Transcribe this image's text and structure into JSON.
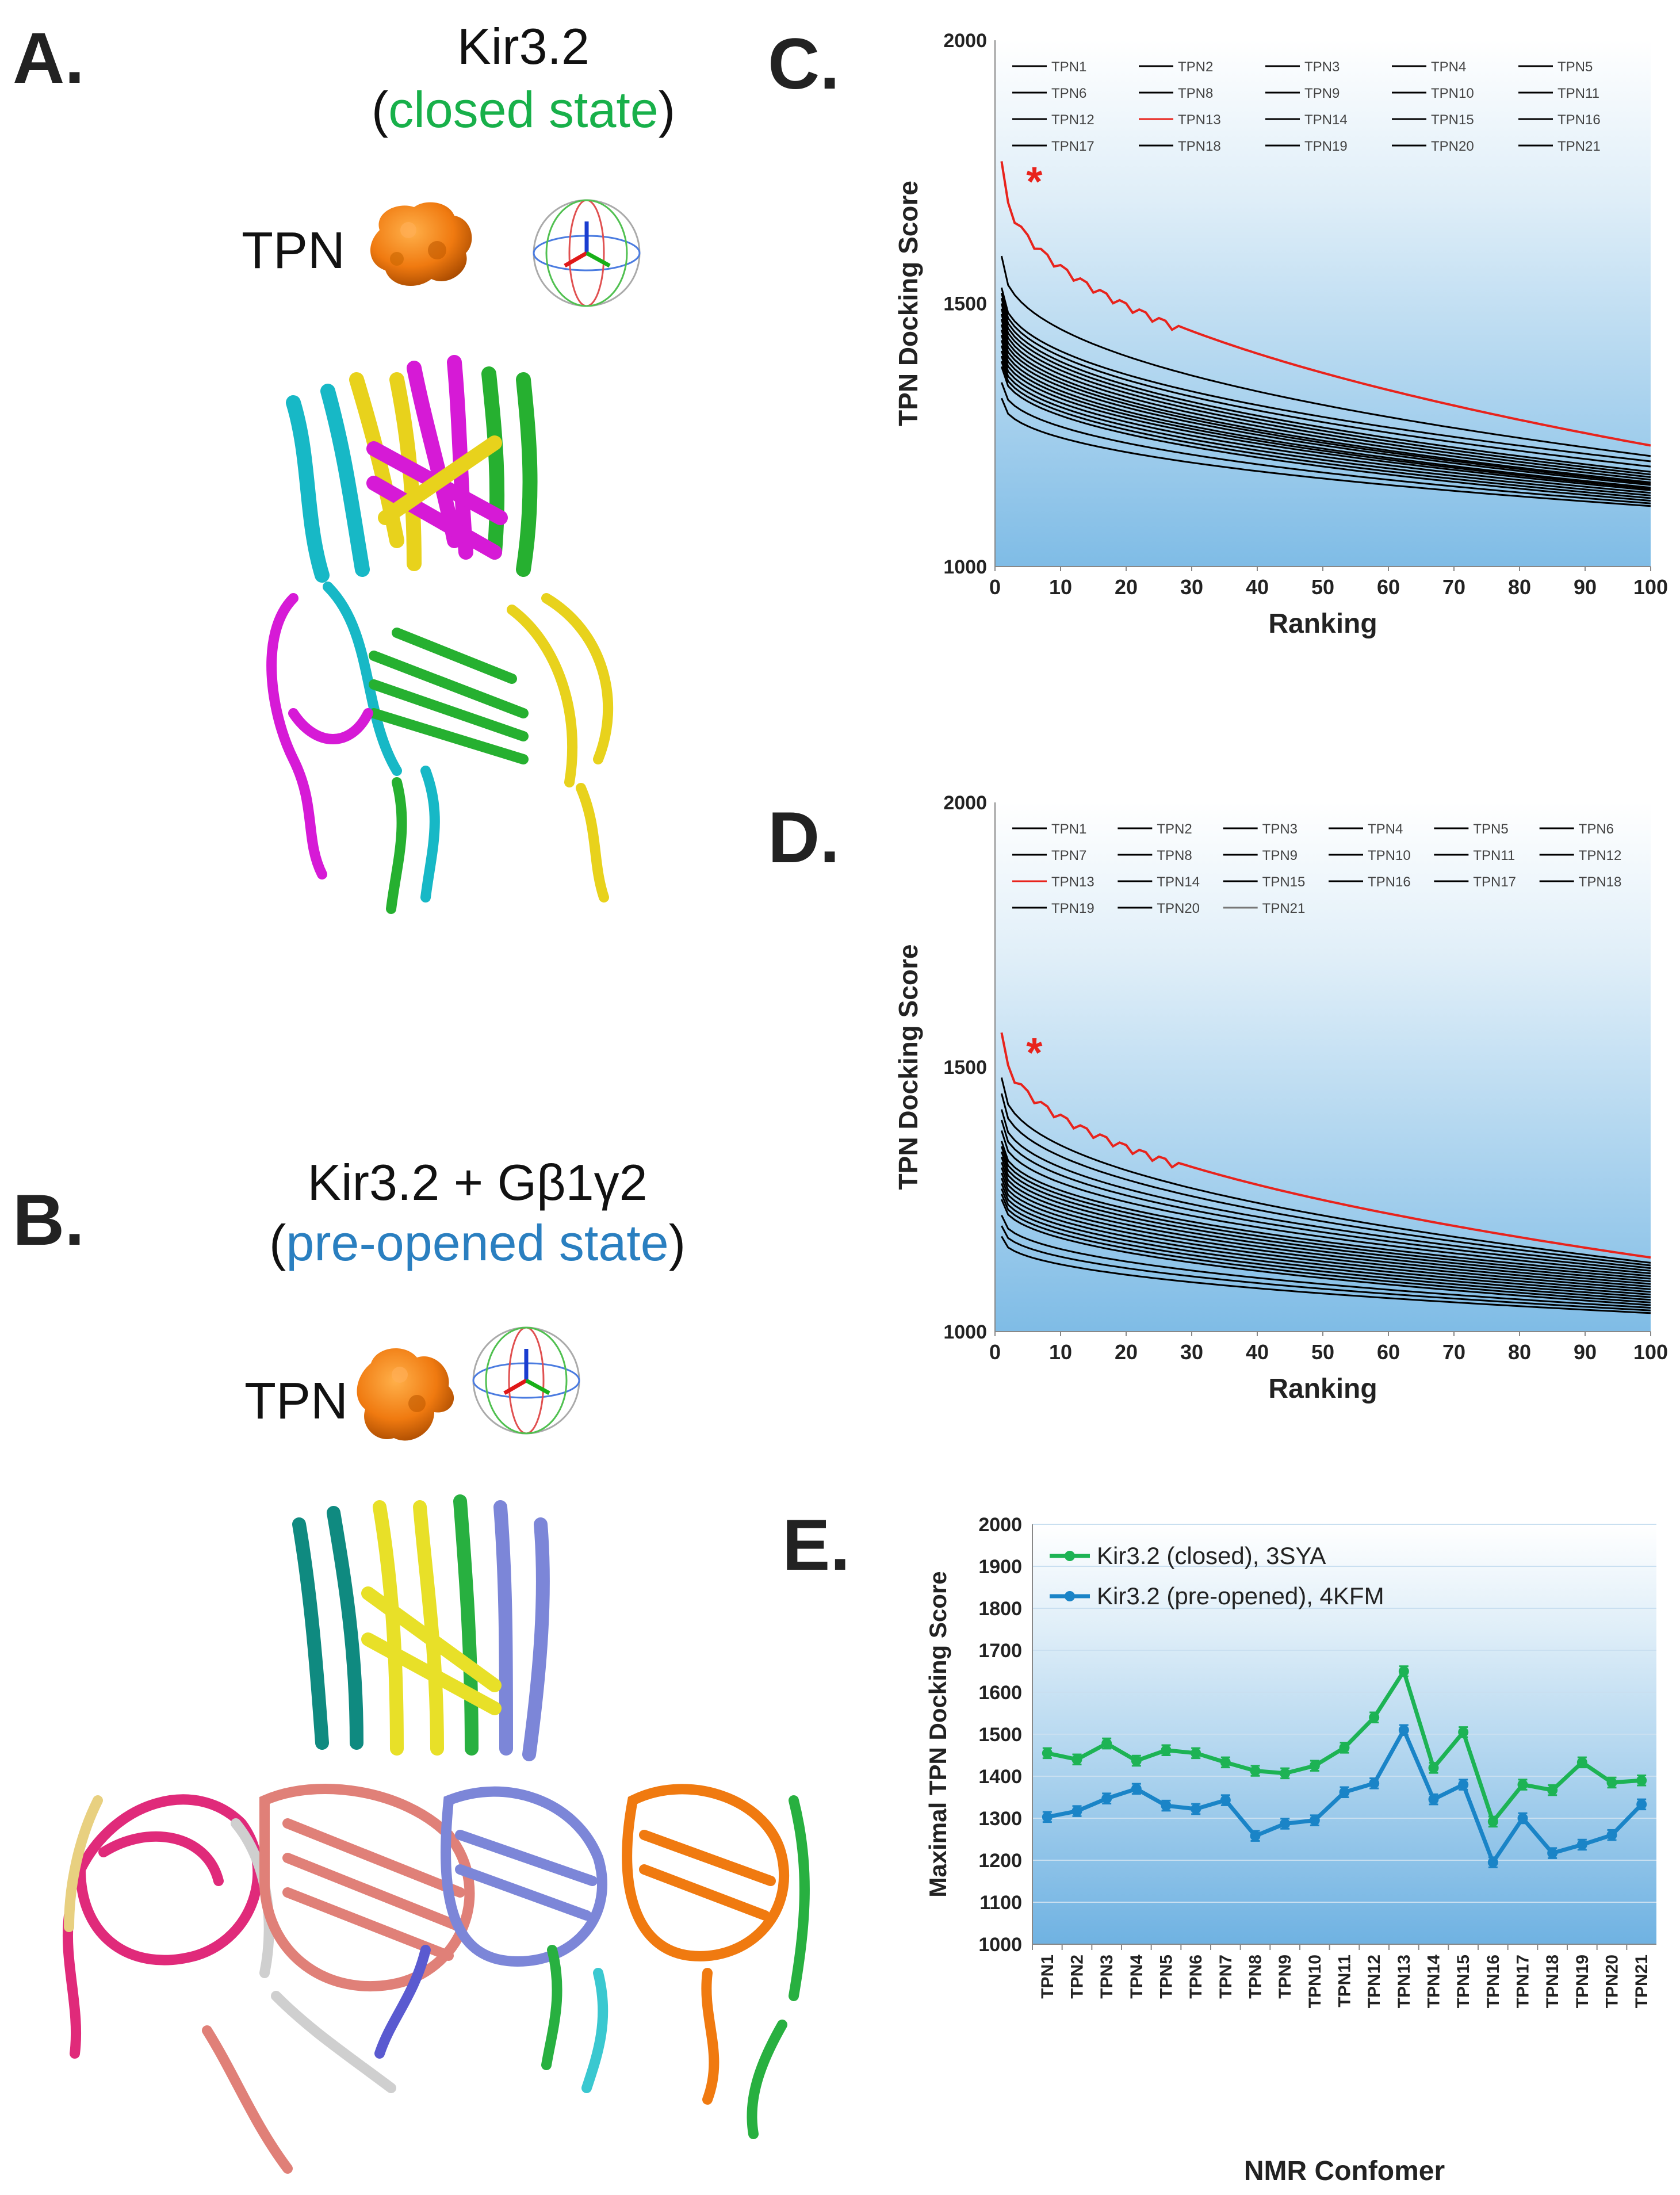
{
  "panels": {
    "a": {
      "letter": "A.",
      "title": "Kir3.2",
      "paren_open": "(",
      "state": "closed state",
      "paren_close": ")",
      "ligand_label": "TPN"
    },
    "b": {
      "letter": "B.",
      "title": "Kir3.2 + Gβ1γ2",
      "paren_open": "(",
      "state": "pre-opened state",
      "paren_close": ")",
      "ligand_label": "TPN"
    },
    "c": {
      "letter": "C."
    },
    "d": {
      "letter": "D."
    },
    "e": {
      "letter": "E."
    }
  },
  "colors": {
    "highlight": "#e8231c",
    "series": "#000000",
    "closed": "#1db354",
    "preopened": "#1a84c7",
    "green_text": "#18b04a",
    "blue_text": "#2a7fc0"
  },
  "chart_data": [
    {
      "id": "C",
      "type": "line",
      "xlabel": "Ranking",
      "ylabel": "TPN Docking Score",
      "xlim": [
        0,
        100
      ],
      "ylim": [
        1000,
        2000
      ],
      "xticks": [
        0,
        10,
        20,
        30,
        40,
        50,
        60,
        70,
        80,
        90,
        100
      ],
      "yticks": [
        1000,
        1500,
        2000
      ],
      "legend": [
        "TPN1",
        "TPN2",
        "TPN3",
        "TPN4",
        "TPN5",
        "TPN6",
        "TPN8",
        "TPN9",
        "TPN10",
        "TPN11",
        "TPN12",
        "TPN13",
        "TPN14",
        "TPN15",
        "TPN16",
        "TPN17",
        "TPN18",
        "TPN19",
        "TPN20",
        "TPN21"
      ],
      "legend_columns": 5,
      "highlight": "TPN13",
      "annotation": "*",
      "highlight_curve": {
        "start": 1770,
        "end": 1230
      },
      "curves": [
        {
          "start": 1590,
          "end": 1210
        },
        {
          "start": 1530,
          "end": 1200
        },
        {
          "start": 1520,
          "end": 1190
        },
        {
          "start": 1510,
          "end": 1180
        },
        {
          "start": 1500,
          "end": 1175
        },
        {
          "start": 1490,
          "end": 1170
        },
        {
          "start": 1480,
          "end": 1165
        },
        {
          "start": 1470,
          "end": 1160
        },
        {
          "start": 1460,
          "end": 1158
        },
        {
          "start": 1450,
          "end": 1155
        },
        {
          "start": 1440,
          "end": 1150
        },
        {
          "start": 1430,
          "end": 1148
        },
        {
          "start": 1420,
          "end": 1145
        },
        {
          "start": 1410,
          "end": 1140
        },
        {
          "start": 1400,
          "end": 1135
        },
        {
          "start": 1390,
          "end": 1130
        },
        {
          "start": 1380,
          "end": 1125
        },
        {
          "start": 1350,
          "end": 1120
        },
        {
          "start": 1320,
          "end": 1115
        }
      ]
    },
    {
      "id": "D",
      "type": "line",
      "xlabel": "Ranking",
      "ylabel": "TPN Docking Score",
      "xlim": [
        0,
        100
      ],
      "ylim": [
        1000,
        2000
      ],
      "xticks": [
        0,
        10,
        20,
        30,
        40,
        50,
        60,
        70,
        80,
        90,
        100
      ],
      "yticks": [
        1000,
        1500,
        2000
      ],
      "legend": [
        "TPN1",
        "TPN2",
        "TPN3",
        "TPN4",
        "TPN5",
        "TPN6",
        "TPN7",
        "TPN8",
        "TPN9",
        "TPN10",
        "TPN11",
        "TPN12",
        "TPN13",
        "TPN14",
        "TPN15",
        "TPN16",
        "TPN17",
        "TPN18",
        "TPN19",
        "TPN20",
        "TPN21"
      ],
      "legend_columns": 6,
      "highlight": "TPN13",
      "annotation": "*",
      "highlight_curve": {
        "start": 1565,
        "end": 1140
      },
      "curves": [
        {
          "start": 1480,
          "end": 1130
        },
        {
          "start": 1450,
          "end": 1125
        },
        {
          "start": 1420,
          "end": 1120
        },
        {
          "start": 1400,
          "end": 1115
        },
        {
          "start": 1380,
          "end": 1110
        },
        {
          "start": 1360,
          "end": 1105
        },
        {
          "start": 1350,
          "end": 1100
        },
        {
          "start": 1340,
          "end": 1095
        },
        {
          "start": 1330,
          "end": 1090
        },
        {
          "start": 1320,
          "end": 1085
        },
        {
          "start": 1310,
          "end": 1080
        },
        {
          "start": 1300,
          "end": 1075
        },
        {
          "start": 1290,
          "end": 1070
        },
        {
          "start": 1280,
          "end": 1065
        },
        {
          "start": 1270,
          "end": 1060
        },
        {
          "start": 1260,
          "end": 1055
        },
        {
          "start": 1250,
          "end": 1050
        },
        {
          "start": 1220,
          "end": 1045
        },
        {
          "start": 1200,
          "end": 1040
        },
        {
          "start": 1180,
          "end": 1035
        }
      ]
    },
    {
      "id": "E",
      "type": "line",
      "xlabel": "NMR Confomer",
      "ylabel": "Maximal TPN Docking Score",
      "ylim": [
        1000,
        2000
      ],
      "yticks": [
        1000,
        1100,
        1200,
        1300,
        1400,
        1500,
        1600,
        1700,
        1800,
        1900,
        2000
      ],
      "categories": [
        "TPN1",
        "TPN2",
        "TPN3",
        "TPN4",
        "TPN5",
        "TPN6",
        "TPN7",
        "TPN8",
        "TPN9",
        "TPN10",
        "TPN11",
        "TPN12",
        "TPN13",
        "TPN14",
        "TPN15",
        "TPN16",
        "TPN17",
        "TPN18",
        "TPN19",
        "TPN20",
        "TPN21"
      ],
      "series": [
        {
          "name": "Kir3.2 (closed), 3SYA",
          "color": "#1db354",
          "values": [
            1455,
            1440,
            1478,
            1437,
            1462,
            1455,
            1433,
            1413,
            1407,
            1425,
            1468,
            1540,
            1650,
            1420,
            1505,
            1292,
            1380,
            1367,
            1433,
            1385,
            1390
          ]
        },
        {
          "name": "Kir3.2 (pre-opened), 4KFM",
          "color": "#1a84c7",
          "values": [
            1303,
            1317,
            1347,
            1370,
            1330,
            1322,
            1343,
            1258,
            1287,
            1295,
            1362,
            1383,
            1510,
            1345,
            1380,
            1195,
            1300,
            1217,
            1237,
            1260,
            1333
          ]
        }
      ]
    }
  ]
}
